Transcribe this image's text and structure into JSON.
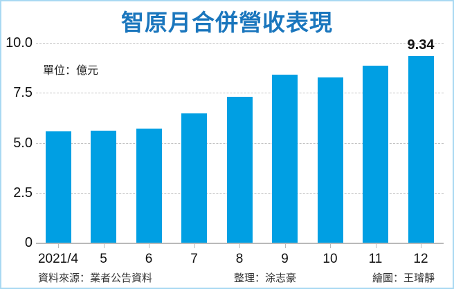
{
  "title": "智原月合併營收表現",
  "unit_label": "單位：億元",
  "colors": {
    "title": "#1a76bd",
    "bar": "#009fe3",
    "frame": "#a9d9f2",
    "grid": "#c2c2c2"
  },
  "y_ticks": [
    "10.0",
    "7.5",
    "5.0",
    "2.5",
    "0"
  ],
  "x_labels": [
    "2021/4",
    "5",
    "6",
    "7",
    "8",
    "9",
    "10",
    "11",
    "12"
  ],
  "bar_annotation": "9.34",
  "footer": {
    "source": "資料來源：業者公告資料",
    "compiled_by": "整理：涂志豪",
    "graphic_by": "繪圖：王璿靜"
  },
  "chart_data": {
    "type": "bar",
    "title": "智原月合併營收表現",
    "subtitle": "單位：億元",
    "categories": [
      "2021/4",
      "5",
      "6",
      "7",
      "8",
      "9",
      "10",
      "11",
      "12"
    ],
    "values": [
      5.57,
      5.6,
      5.7,
      6.47,
      7.3,
      8.4,
      8.27,
      8.86,
      9.34
    ],
    "xlabel": "",
    "ylabel": "億元",
    "ylim": [
      0,
      10
    ],
    "yticks": [
      0,
      2.5,
      5.0,
      7.5,
      10.0
    ],
    "grid": true,
    "grid_style": "dashed horizontal",
    "legend": null,
    "annotations": [
      {
        "category": "12",
        "text": "9.34"
      }
    ],
    "source": "資料來源：業者公告資料",
    "credits": [
      "整理：涂志豪",
      "繪圖：王璿靜"
    ]
  }
}
